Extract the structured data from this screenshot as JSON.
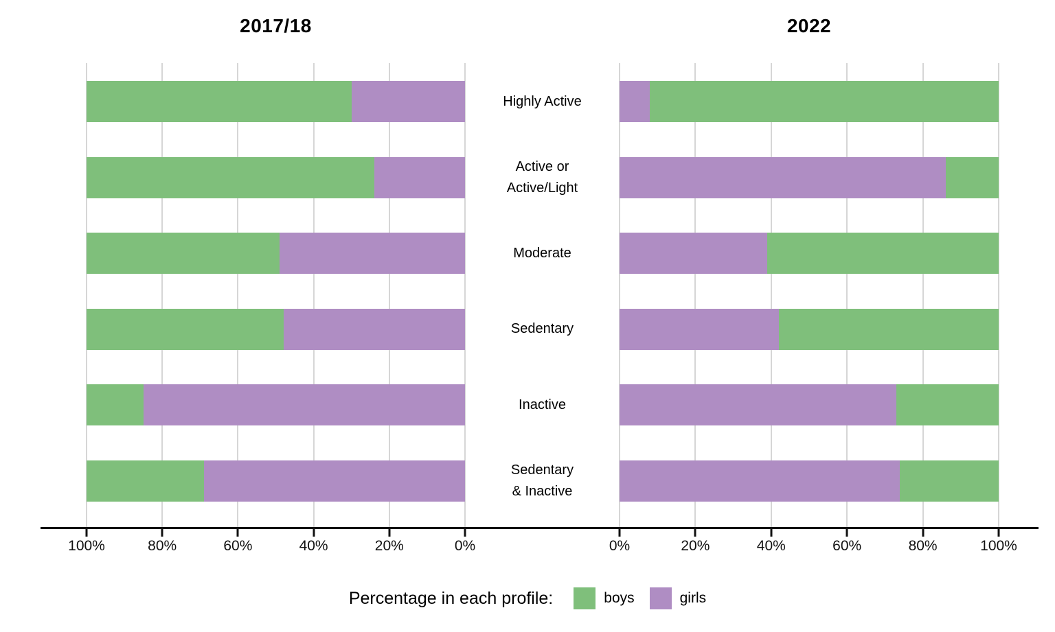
{
  "chart_data": {
    "type": "bar",
    "variant": "mirrored-stacked-horizontal",
    "title": "",
    "categories": [
      "Highly Active",
      "Active or Active/Light",
      "Moderate",
      "Sedentary",
      "Inactive",
      "Sedentary & Inactive"
    ],
    "category_lines": [
      [
        "Highly Active"
      ],
      [
        "Active or",
        "Active/Light"
      ],
      [
        "Moderate"
      ],
      [
        "Sedentary"
      ],
      [
        "Inactive"
      ],
      [
        "Sedentary",
        "& Inactive"
      ]
    ],
    "axis_range": [
      0,
      100
    ],
    "grid": true,
    "panels": [
      {
        "title": "2017/18",
        "axis_direction": "reversed",
        "tick_labels": [
          "100%",
          "80%",
          "60%",
          "40%",
          "20%",
          "0%"
        ],
        "stack_order_from_left": [
          "boys",
          "girls"
        ],
        "series": [
          {
            "name": "boys",
            "values": [
              70,
              76,
              51,
              52,
              15,
              31
            ]
          },
          {
            "name": "girls",
            "values": [
              30,
              24,
              49,
              48,
              85,
              69
            ]
          }
        ]
      },
      {
        "title": "2022",
        "axis_direction": "normal",
        "tick_labels": [
          "0%",
          "20%",
          "40%",
          "60%",
          "80%",
          "100%"
        ],
        "stack_order_from_left": [
          "girls",
          "boys"
        ],
        "series": [
          {
            "name": "boys",
            "values": [
              92,
              14,
              61,
              58,
              27,
              26
            ]
          },
          {
            "name": "girls",
            "values": [
              8,
              86,
              39,
              42,
              73,
              74
            ]
          }
        ]
      }
    ],
    "legend": {
      "title": "Percentage in each profile:",
      "entries": [
        {
          "label": "boys",
          "color": "#7fbf7b"
        },
        {
          "label": "girls",
          "color": "#af8dc3"
        }
      ]
    },
    "colors": {
      "boys": "#7fbf7b",
      "girls": "#af8dc3",
      "gridline": "#d6d6d6",
      "axis": "#111111"
    }
  }
}
